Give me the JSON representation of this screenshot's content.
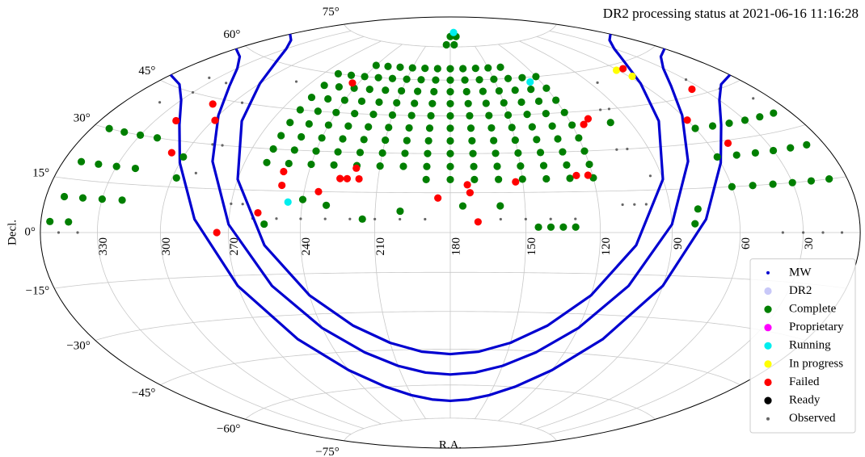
{
  "chart_data": {
    "type": "scatter",
    "projection": "hammer",
    "title": "DR2 processing status at 2021-06-16 11:16:28",
    "xlabel": "R.A.",
    "ylabel": "Decl.",
    "xlim": [
      0,
      360
    ],
    "ylim": [
      -90,
      90
    ],
    "xticks": [
      330,
      300,
      270,
      240,
      210,
      180,
      150,
      120,
      90,
      60,
      30
    ],
    "yticks": [
      {
        "value": -75,
        "label": "−75°"
      },
      {
        "value": -60,
        "label": "−60°"
      },
      {
        "value": -45,
        "label": "−45°"
      },
      {
        "value": -30,
        "label": "−30°"
      },
      {
        "value": -15,
        "label": "−15°"
      },
      {
        "value": 0,
        "label": "0°"
      },
      {
        "value": 15,
        "label": "15°"
      },
      {
        "value": 30,
        "label": "30°"
      },
      {
        "value": 45,
        "label": "45°"
      },
      {
        "value": 60,
        "label": "60°"
      },
      {
        "value": 75,
        "label": "75°"
      }
    ],
    "grid": true,
    "legend": "lower right",
    "series": [
      {
        "name": "MW",
        "color": "#0000d0",
        "marker": "line",
        "x": [
          360,
          345,
          330,
          315,
          300,
          285,
          270,
          255,
          240,
          225,
          210,
          195,
          180,
          165,
          150,
          135,
          120,
          105,
          90,
          75,
          60,
          45,
          30,
          15,
          0,
          null,
          360,
          345,
          330,
          315,
          300,
          285,
          270,
          255,
          240,
          225,
          210,
          195,
          180,
          165,
          150,
          135,
          120,
          105,
          90,
          75,
          60,
          45,
          30,
          15,
          0,
          null,
          360,
          345,
          330,
          315,
          300,
          285,
          270,
          255,
          240,
          225,
          210,
          195,
          180,
          165,
          150,
          135,
          120,
          105,
          90,
          75,
          60,
          45,
          30,
          15,
          0
        ],
        "values": [
          47,
          45.9,
          42.1,
          34.95,
          23.0,
          4.5,
          -18.6,
          -38.9,
          -52.2,
          -59.85,
          -64.1,
          -66.3,
          -67,
          -66.3,
          -64.1,
          -59.85,
          -52.2,
          -38.9,
          -18.6,
          4.5,
          23.0,
          34.95,
          42.1,
          45.9,
          47,
          null,
          58.5,
          57.6,
          54.8,
          49.3,
          39.8,
          24.3,
          2.8,
          -19.1,
          -35.4,
          -45.5,
          -51.5,
          -54.6,
          -55.5,
          -54.6,
          -51.5,
          -45.5,
          -35.4,
          -19.1,
          2.8,
          24.3,
          39.8,
          49.3,
          54.8,
          57.6,
          58.5,
          null,
          67,
          66.3,
          64.1,
          59.9,
          52.2,
          38.9,
          18.6,
          -4.5,
          -23.0,
          -34.95,
          -42.1,
          -45.9,
          -47,
          -45.9,
          -42.1,
          -34.95,
          -23.0,
          -4.5,
          18.6,
          38.9,
          52.2,
          59.9,
          64.1,
          66.3,
          67
        ]
      },
      {
        "name": "DR2",
        "color": "#c8c8f8",
        "marker": "circle",
        "x": [],
        "values": []
      },
      {
        "name": "Complete",
        "color": "#007f00",
        "marker": "circle",
        "x": [
          120,
          130,
          140,
          150,
          160,
          170,
          180,
          190,
          200,
          210,
          220,
          230,
          240,
          250,
          260,
          120,
          130,
          140,
          150,
          160,
          170,
          180,
          190,
          200,
          210,
          220,
          230,
          240,
          250,
          260,
          120,
          130,
          140,
          150,
          160,
          170,
          180,
          190,
          200,
          210,
          220,
          230,
          240,
          250,
          260,
          120,
          130,
          140,
          150,
          160,
          170,
          180,
          190,
          200,
          210,
          220,
          230,
          240,
          250,
          260,
          120,
          130,
          140,
          150,
          160,
          170,
          180,
          190,
          200,
          210,
          220,
          230,
          240,
          250,
          260,
          120,
          130,
          140,
          150,
          160,
          170,
          180,
          190,
          200,
          210,
          220,
          230,
          240,
          250,
          260,
          120,
          130,
          140,
          150,
          160,
          170,
          180,
          190,
          200,
          210,
          220,
          230,
          240,
          250,
          260,
          120,
          130,
          140,
          150,
          160,
          170,
          180,
          190,
          200,
          210,
          220,
          230,
          240,
          250,
          260,
          140,
          150,
          160,
          170,
          180,
          190,
          200,
          210,
          220,
          230,
          240,
          120,
          130,
          140,
          150,
          160,
          170,
          180,
          190,
          175,
          185,
          170,
          180,
          320,
          330,
          340,
          350,
          320,
          330,
          340,
          350,
          320,
          330,
          340,
          350,
          345,
          355,
          10,
          20,
          30,
          40,
          50,
          60,
          10,
          20,
          30,
          40,
          50,
          60,
          10,
          20,
          30,
          40,
          50,
          60,
          300,
          298,
          100,
          80,
          78,
          130,
          135,
          140,
          145,
          160,
          175,
          200,
          215,
          230,
          240,
          255
        ],
        "values": [
          25,
          25,
          25,
          25,
          25,
          25,
          25,
          25,
          25,
          25,
          25,
          25,
          25,
          25,
          25,
          30,
          30,
          30,
          30,
          30,
          30,
          30,
          30,
          30,
          30,
          30,
          30,
          30,
          30,
          30,
          35,
          35,
          35,
          35,
          35,
          35,
          35,
          35,
          35,
          35,
          35,
          35,
          35,
          35,
          35,
          40,
          40,
          40,
          40,
          40,
          40,
          40,
          40,
          40,
          40,
          40,
          40,
          40,
          40,
          40,
          45,
          45,
          45,
          45,
          45,
          45,
          45,
          45,
          45,
          45,
          45,
          45,
          45,
          45,
          45,
          50,
          50,
          50,
          50,
          50,
          50,
          50,
          50,
          50,
          50,
          50,
          50,
          50,
          50,
          50,
          55,
          55,
          55,
          55,
          55,
          55,
          55,
          55,
          55,
          55,
          55,
          55,
          55,
          55,
          55,
          60,
          60,
          60,
          60,
          60,
          60,
          60,
          60,
          60,
          60,
          60,
          60,
          60,
          60,
          60,
          65,
          65,
          65,
          65,
          65,
          65,
          65,
          65,
          65,
          65,
          65,
          20,
          20,
          20,
          20,
          20,
          20,
          20,
          20,
          76,
          76,
          80,
          80,
          10,
          10,
          10,
          10,
          20,
          20,
          20,
          20,
          30,
          30,
          30,
          30,
          3,
          3,
          15,
          15,
          15,
          15,
          15,
          15,
          25,
          25,
          25,
          25,
          25,
          25,
          35,
          35,
          35,
          35,
          35,
          35,
          25,
          18,
          40,
          3,
          8,
          2,
          2,
          2,
          2,
          10,
          10,
          8,
          5,
          10,
          12,
          3
        ]
      },
      {
        "name": "Proprietary",
        "color": "#ff00ff",
        "marker": "circle",
        "x": [],
        "values": []
      },
      {
        "name": "Running",
        "color": "#00eeee",
        "marker": "circle",
        "x": [
          173,
          127,
          246
        ],
        "values": [
          82,
          58,
          11
        ]
      },
      {
        "name": "In progress",
        "color": "#ffff00",
        "marker": "circle",
        "x": [
          61,
          58
        ],
        "values": [
          58,
          55
        ]
      },
      {
        "name": "Failed",
        "color": "#ff0000",
        "marker": "circle",
        "x": [
          319,
          310,
          299,
          307,
          275,
          244,
          251,
          258,
          250,
          234,
          226,
          223,
          220,
          218,
          185,
          172,
          173,
          169,
          153,
          127,
          122,
          114,
          110,
          55,
          36,
          60,
          50
        ],
        "values": [
          36,
          43,
          38,
          26,
          0,
          57,
          22,
          7,
          17,
          15,
          20,
          20,
          24,
          20,
          13,
          15,
          18,
          4,
          19,
          21,
          21,
          40,
          42,
          58,
          47,
          38,
          29
        ]
      },
      {
        "name": "Ready",
        "color": "#000000",
        "marker": "circle",
        "x": [],
        "values": []
      },
      {
        "name": "Observed",
        "color": "#666666",
        "marker": "point",
        "x": [
          340,
          350,
          10,
          20,
          30,
          40,
          190,
          200,
          210,
          220,
          230,
          240,
          250,
          260,
          130,
          140,
          150,
          160,
          100,
          105,
          110,
          265,
          270,
          290,
          295,
          95,
          100,
          280,
          85,
          285,
          290,
          100,
          105,
          290,
          95,
          330,
          340,
          320,
          335,
          20,
          30,
          10
        ],
        "values": [
          0,
          0,
          0,
          0,
          0,
          0,
          5,
          5,
          5,
          5,
          5,
          5,
          5,
          5,
          5,
          5,
          5,
          5,
          10,
          10,
          10,
          10,
          10,
          45,
          45,
          45,
          45,
          55,
          55,
          30,
          30,
          30,
          30,
          20,
          20,
          45,
          40,
          50,
          50,
          45,
          50,
          40
        ]
      }
    ]
  }
}
